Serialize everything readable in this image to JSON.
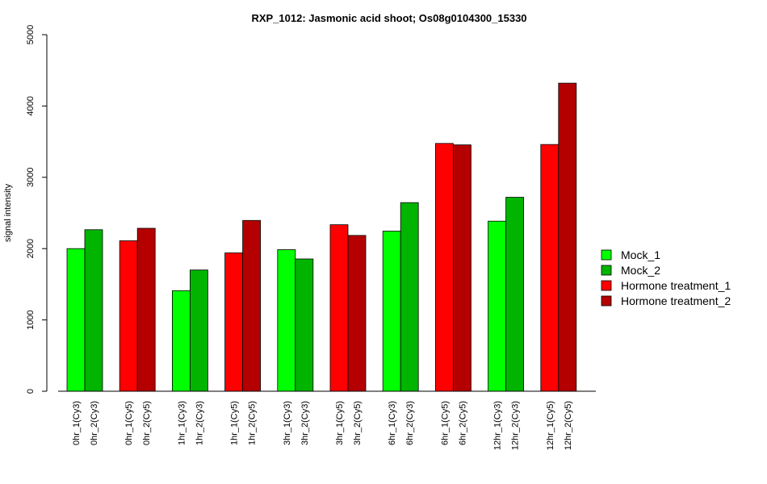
{
  "chart_data": {
    "type": "bar",
    "title": "RXP_1012: Jasmonic acid shoot; Os08g0104300_15330",
    "ylabel": "signal intensity",
    "xlabel": "",
    "ylim": [
      0,
      5000
    ],
    "yticks": [
      0,
      1000,
      2000,
      3000,
      4000,
      5000
    ],
    "grid": false,
    "legend_position": "right",
    "series": [
      {
        "name": "Mock_1",
        "color": "#00ff00"
      },
      {
        "name": "Mock_2",
        "color": "#00b400"
      },
      {
        "name": "Hormone treatment_1",
        "color": "#ff0000"
      },
      {
        "name": "Hormone treatment_2",
        "color": "#b40000"
      }
    ],
    "groups": [
      {
        "bars": [
          {
            "label": "0hr_1(Cy3)",
            "value": 2000,
            "series": 0
          },
          {
            "label": "0hr_2(Cy3)",
            "value": 2265,
            "series": 1
          }
        ]
      },
      {
        "bars": [
          {
            "label": "0hr_1(Cy5)",
            "value": 2110,
            "series": 2
          },
          {
            "label": "0hr_2(Cy5)",
            "value": 2285,
            "series": 3
          }
        ]
      },
      {
        "bars": [
          {
            "label": "1hr_1(Cy3)",
            "value": 1410,
            "series": 0
          },
          {
            "label": "1hr_2(Cy3)",
            "value": 1700,
            "series": 1
          }
        ]
      },
      {
        "bars": [
          {
            "label": "1hr_1(Cy5)",
            "value": 1940,
            "series": 2
          },
          {
            "label": "1hr_2(Cy5)",
            "value": 2395,
            "series": 3
          }
        ]
      },
      {
        "bars": [
          {
            "label": "3hr_1(Cy3)",
            "value": 1985,
            "series": 0
          },
          {
            "label": "3hr_2(Cy3)",
            "value": 1855,
            "series": 1
          }
        ]
      },
      {
        "bars": [
          {
            "label": "3hr_1(Cy5)",
            "value": 2335,
            "series": 2
          },
          {
            "label": "3hr_2(Cy5)",
            "value": 2185,
            "series": 3
          }
        ]
      },
      {
        "bars": [
          {
            "label": "6hr_1(Cy3)",
            "value": 2245,
            "series": 0
          },
          {
            "label": "6hr_2(Cy3)",
            "value": 2645,
            "series": 1
          }
        ]
      },
      {
        "bars": [
          {
            "label": "6hr_1(Cy5)",
            "value": 3475,
            "series": 2
          },
          {
            "label": "6hr_2(Cy5)",
            "value": 3455,
            "series": 3
          }
        ]
      },
      {
        "bars": [
          {
            "label": "12hr_1(Cy3)",
            "value": 2385,
            "series": 0
          },
          {
            "label": "12hr_2(Cy3)",
            "value": 2720,
            "series": 1
          }
        ]
      },
      {
        "bars": [
          {
            "label": "12hr_1(Cy5)",
            "value": 3460,
            "series": 2
          },
          {
            "label": "12hr_2(Cy5)",
            "value": 4320,
            "series": 3
          }
        ]
      }
    ]
  }
}
